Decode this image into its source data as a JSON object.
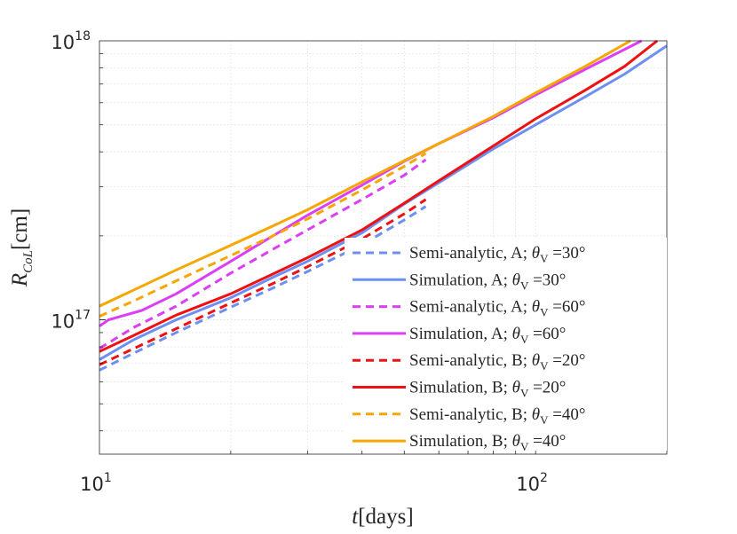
{
  "chart_data": {
    "type": "line",
    "xscale": "log",
    "yscale": "log",
    "xlim": [
      10,
      200
    ],
    "ylim": [
      3.3e+16,
      1e+18
    ],
    "grid": true,
    "legend_position": "bottom-right",
    "xlabel": {
      "symbol": "t",
      "unit": "[days]"
    },
    "ylabel": {
      "symbol": "R",
      "subscript": "CoL",
      "unit": "[cm]"
    },
    "xticks": [
      {
        "value": 10,
        "base": "10",
        "exp": "1"
      },
      {
        "value": 100,
        "base": "10",
        "exp": "2"
      }
    ],
    "yticks": [
      {
        "value": 1e+17,
        "base": "10",
        "exp": "17"
      },
      {
        "value": 1e+18,
        "base": "10",
        "exp": "18"
      }
    ],
    "series": [
      {
        "label": "Semi-analytic, A; θ V =30°",
        "text": "Semi-analytic, A;",
        "angle": "30°",
        "color": "#6e8ff2",
        "dash": true,
        "x": [
          10,
          12,
          15,
          20,
          25,
          30,
          40,
          50,
          56
        ],
        "y": [
          6.6e+16,
          7.6e+16,
          9e+16,
          1.11e+17,
          1.3e+17,
          1.49e+17,
          1.86e+17,
          2.28e+17,
          2.55e+17
        ]
      },
      {
        "label": "Simulation, A; θV =30°",
        "text": "Simulation, A;",
        "angle": "30°",
        "color": "#6e8ff2",
        "dash": false,
        "x": [
          10,
          12,
          15,
          20,
          25,
          30,
          40,
          50,
          60,
          80,
          100,
          130,
          160,
          200
        ],
        "y": [
          7.2e+16,
          8.5e+16,
          1e+17,
          1.2e+17,
          1.42e+17,
          1.62e+17,
          2.05e+17,
          2.6e+17,
          3.1e+17,
          4.1e+17,
          5e+17,
          6.3e+17,
          7.6e+17,
          9.6e+17
        ]
      },
      {
        "label": "Semi-analytic, A; θV =60°",
        "text": "Semi-analytic, A;",
        "angle": "60°",
        "color": "#dc3ef5",
        "dash": true,
        "x": [
          10,
          12,
          15,
          20,
          25,
          30,
          40,
          50,
          56
        ],
        "y": [
          7.9e+16,
          9.4e+16,
          1.12e+17,
          1.47e+17,
          1.79e+17,
          2.1e+17,
          2.7e+17,
          3.3e+17,
          3.75e+17
        ]
      },
      {
        "label": "Simulation, A; θV =60°",
        "text": "Simulation, A;",
        "angle": "60°",
        "color": "#dc3ef5",
        "dash": false,
        "x": [
          10,
          10.5,
          12.5,
          15,
          20,
          25,
          30,
          40,
          50,
          60,
          80,
          100,
          130,
          175
        ],
        "y": [
          9.5e+16,
          1e+17,
          1.08e+17,
          1.24e+17,
          1.62e+17,
          2e+17,
          2.37e+17,
          3.04e+17,
          3.7e+17,
          4.28e+17,
          5.3e+17,
          6.4e+17,
          7.9e+17,
          1e+18
        ]
      },
      {
        "label": "Semi-analytic, B; θV =20°",
        "text": "Semi-analytic, B;",
        "angle": "20°",
        "color": "#ee1111",
        "dash": true,
        "x": [
          10,
          12,
          15,
          20,
          25,
          30,
          40,
          50,
          56
        ],
        "y": [
          6.9e+16,
          7.9e+16,
          9.3e+16,
          1.15e+17,
          1.35e+17,
          1.55e+17,
          1.95e+17,
          2.4e+17,
          2.7e+17
        ]
      },
      {
        "label": "Simulation, B; θV =20°",
        "text": "Simulation, B;",
        "angle": "20°",
        "color": "#ee1111",
        "dash": false,
        "x": [
          10,
          12,
          15,
          20,
          25,
          30,
          40,
          50,
          60,
          80,
          100,
          130,
          160,
          190
        ],
        "y": [
          7.7e+16,
          8.8e+16,
          1.04e+17,
          1.24e+17,
          1.46e+17,
          1.67e+17,
          2.1e+17,
          2.62e+17,
          3.15e+17,
          4.2e+17,
          5.25e+17,
          6.65e+17,
          8.1e+17,
          1e+18
        ]
      },
      {
        "label": "Semi-analytic, B; θV =40°",
        "text": "Semi-analytic, B;",
        "angle": "40°",
        "color": "#f5a700",
        "dash": true,
        "x": [
          10,
          12,
          15,
          20,
          25,
          30,
          40,
          50,
          56
        ],
        "y": [
          1.03e+17,
          1.17e+17,
          1.38e+17,
          1.7e+17,
          2e+17,
          2.3e+17,
          2.92e+17,
          3.55e+17,
          3.95e+17
        ]
      },
      {
        "label": "Simulation, B; θV =40°",
        "text": "Simulation, B;",
        "angle": "40°",
        "color": "#f5a700",
        "dash": false,
        "x": [
          10,
          12,
          15,
          20,
          25,
          30,
          40,
          50,
          60,
          80,
          100,
          130,
          165
        ],
        "y": [
          1.12e+17,
          1.28e+17,
          1.51e+17,
          1.85e+17,
          2.17e+17,
          2.48e+17,
          3.12e+17,
          3.72e+17,
          4.28e+17,
          5.36e+17,
          6.5e+17,
          8.1e+17,
          1e+18
        ]
      }
    ]
  }
}
